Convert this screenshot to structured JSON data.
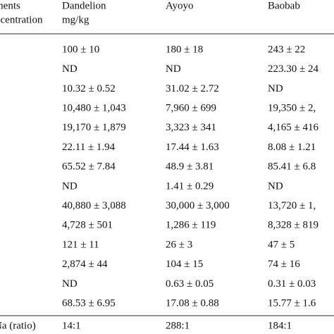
{
  "table": {
    "header": [
      [
        "ments",
        "ncentration"
      ],
      [
        "Dandelion",
        "mg/kg"
      ],
      [
        "Ayoyo"
      ],
      [
        "Baobab"
      ]
    ],
    "rows": [
      [
        "100 ± 10",
        "180 ± 18",
        "243 ± 22"
      ],
      [
        "ND",
        "ND",
        "223.30 ± 24"
      ],
      [
        "10.32 ± 0.52",
        "31.02 ± 2.72",
        "ND"
      ],
      [
        "10,480 ± 1,043",
        "7,960 ± 699",
        "19,350 ± 2,"
      ],
      [
        "19,170 ± 1,879",
        "3,323 ± 341",
        "4,165 ± 416"
      ],
      [
        "22.11 ± 1.94",
        "17.44 ± 1.63",
        "8.08 ± 1.21"
      ],
      [
        "65.52 ± 7.84",
        "48.9 ± 3.81",
        "85.41 ± 6.8"
      ],
      [
        "ND",
        "1.41 ± 0.29",
        "ND"
      ],
      [
        "40,880 ± 3,088",
        "30,000 ± 3,000",
        "13,720 ± 1,"
      ],
      [
        "4,728 ± 501",
        "1,286 ± 119",
        "8,328 ± 819"
      ],
      [
        "121 ± 11",
        "26 ± 3",
        "47 ± 5"
      ],
      [
        "2,874 ± 44",
        "104 ± 15",
        "74 ± 16"
      ],
      [
        "ND",
        "0.63 ± 0.05",
        "0.31 ± 0.03"
      ],
      [
        "68.53 ± 6.95",
        "17.08 ± 0.88",
        "15.77 ± 1.6"
      ]
    ],
    "ratio_row": {
      "label": "Na (ratio)",
      "values": [
        "14:1",
        "288:1",
        "184:1"
      ]
    }
  }
}
